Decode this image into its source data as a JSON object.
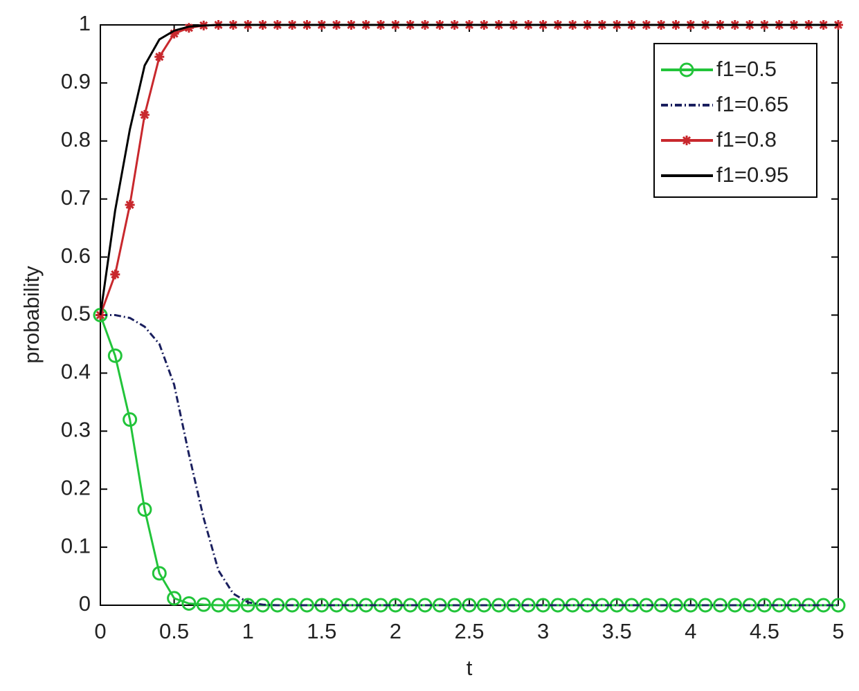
{
  "chart_data": {
    "type": "line",
    "xlabel": "t",
    "ylabel": "probability",
    "x": [
      0,
      0.1,
      0.2,
      0.3,
      0.4,
      0.5,
      0.6,
      0.7,
      0.8,
      0.9,
      1,
      1.1,
      1.2,
      1.3,
      1.4,
      1.5,
      1.6,
      1.7,
      1.8,
      1.9,
      2,
      2.1,
      2.2,
      2.3,
      2.4,
      2.5,
      2.6,
      2.7,
      2.8,
      2.9,
      3,
      3.1,
      3.2,
      3.3,
      3.4,
      3.5,
      3.6,
      3.7,
      3.8,
      3.9,
      4,
      4.1,
      4.2,
      4.3,
      4.4,
      4.5,
      4.6,
      4.7,
      4.8,
      4.9,
      5
    ],
    "series": [
      {
        "name": "f1=0.5",
        "color": "#22c43a",
        "marker": "o",
        "line_style": "solid",
        "values": [
          0.5,
          0.43,
          0.32,
          0.165,
          0.055,
          0.012,
          0.003,
          0.001,
          0,
          0,
          0,
          0,
          0,
          0,
          0,
          0,
          0,
          0,
          0,
          0,
          0,
          0,
          0,
          0,
          0,
          0,
          0,
          0,
          0,
          0,
          0,
          0,
          0,
          0,
          0,
          0,
          0,
          0,
          0,
          0,
          0,
          0,
          0,
          0,
          0,
          0,
          0,
          0,
          0,
          0,
          0
        ]
      },
      {
        "name": "f1=0.65",
        "color": "#1a1f5e",
        "marker": "none",
        "line_style": "dashdot",
        "values": [
          0.5,
          0.5,
          0.495,
          0.48,
          0.45,
          0.38,
          0.26,
          0.15,
          0.06,
          0.02,
          0.005,
          0.001,
          0,
          0,
          0,
          0,
          0,
          0,
          0,
          0,
          0,
          0,
          0,
          0,
          0,
          0,
          0,
          0,
          0,
          0,
          0,
          0,
          0,
          0,
          0,
          0,
          0,
          0,
          0,
          0,
          0,
          0,
          0,
          0,
          0,
          0,
          0,
          0,
          0,
          0,
          0
        ]
      },
      {
        "name": "f1=0.8",
        "color": "#c8282d",
        "marker": "*",
        "line_style": "solid",
        "values": [
          0.5,
          0.57,
          0.69,
          0.845,
          0.945,
          0.985,
          0.995,
          0.999,
          1,
          1,
          1,
          1,
          1,
          1,
          1,
          1,
          1,
          1,
          1,
          1,
          1,
          1,
          1,
          1,
          1,
          1,
          1,
          1,
          1,
          1,
          1,
          1,
          1,
          1,
          1,
          1,
          1,
          1,
          1,
          1,
          1,
          1,
          1,
          1,
          1,
          1,
          1,
          1,
          1,
          1,
          1
        ]
      },
      {
        "name": "f1=0.95",
        "color": "#000000",
        "marker": "none",
        "line_style": "solid",
        "values": [
          0.5,
          0.68,
          0.82,
          0.93,
          0.975,
          0.99,
          0.997,
          0.999,
          1,
          1,
          1,
          1,
          1,
          1,
          1,
          1,
          1,
          1,
          1,
          1,
          1,
          1,
          1,
          1,
          1,
          1,
          1,
          1,
          1,
          1,
          1,
          1,
          1,
          1,
          1,
          1,
          1,
          1,
          1,
          1,
          1,
          1,
          1,
          1,
          1,
          1,
          1,
          1,
          1,
          1,
          1
        ]
      }
    ],
    "xlim": [
      0,
      5
    ],
    "ylim": [
      0,
      1
    ],
    "xticks": [
      0,
      0.5,
      1,
      1.5,
      2,
      2.5,
      3,
      3.5,
      4,
      4.5,
      5
    ],
    "yticks": [
      0,
      0.1,
      0.2,
      0.3,
      0.4,
      0.5,
      0.6,
      0.7,
      0.8,
      0.9,
      1
    ],
    "grid": false,
    "legend": "upper right"
  }
}
